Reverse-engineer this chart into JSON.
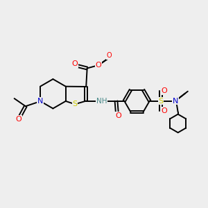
{
  "bg_color": "#eeeeee",
  "atom_colors": {
    "C": "#000000",
    "N": "#0000cc",
    "O": "#ff0000",
    "S": "#cccc00",
    "H": "#4a8a8a"
  },
  "bond_lw": 1.4,
  "figsize": [
    3.0,
    3.0
  ],
  "dpi": 100,
  "xlim": [
    0,
    10
  ],
  "ylim": [
    0,
    10
  ]
}
